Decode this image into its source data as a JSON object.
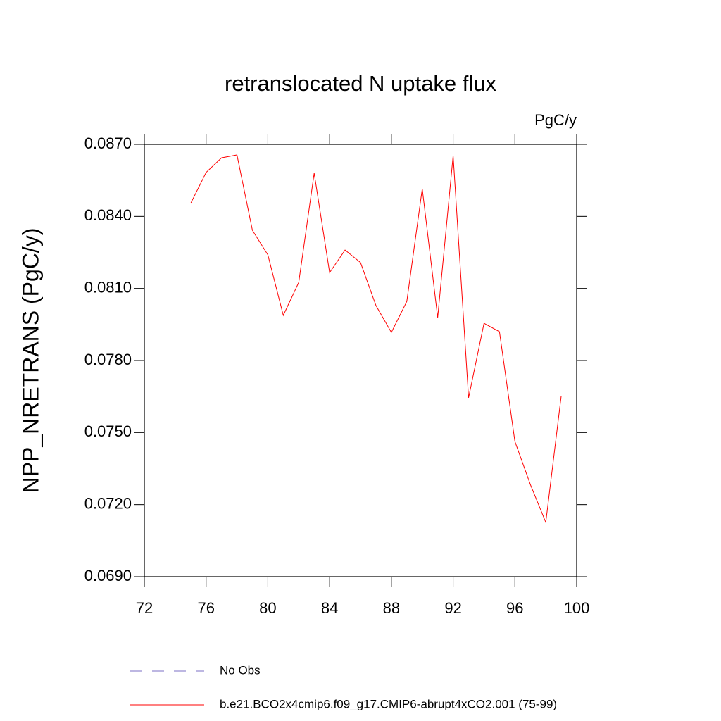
{
  "chart_data": {
    "type": "line",
    "title": "retranslocated N uptake flux",
    "units_label": "PgC/y",
    "y_label": "NPP_NRETRANS  (PgC/y)",
    "x": [
      75,
      76,
      77,
      78,
      79,
      80,
      81,
      82,
      83,
      84,
      85,
      86,
      87,
      88,
      89,
      90,
      91,
      92,
      93,
      94,
      95,
      96,
      97,
      98,
      99
    ],
    "series": [
      {
        "name": "b.e21.BCO2x4cmip6.f09_g17.CMIP6-abrupt4xCO2.001 (75-99)",
        "color": "#ff0000",
        "values": [
          0.08454,
          0.08583,
          0.08644,
          0.08656,
          0.08342,
          0.0824,
          0.07988,
          0.08125,
          0.0858,
          0.08166,
          0.0826,
          0.08208,
          0.08029,
          0.07917,
          0.08046,
          0.08515,
          0.07979,
          0.08653,
          0.07645,
          0.07955,
          0.0792,
          0.07463,
          0.07284,
          0.07126,
          0.07653
        ]
      }
    ],
    "legend_extra": [
      {
        "name": "No Obs",
        "color": "#7b6fc4",
        "dashed": true
      }
    ],
    "xlim": [
      72,
      100
    ],
    "xticks": [
      72,
      76,
      80,
      84,
      88,
      92,
      96,
      100
    ],
    "ylim": [
      0.069,
      0.087
    ],
    "yticks": [
      {
        "value": 0.069,
        "label": "0.0690"
      },
      {
        "value": 0.072,
        "label": "0.0720"
      },
      {
        "value": 0.075,
        "label": "0.0750"
      },
      {
        "value": 0.078,
        "label": "0.0780"
      },
      {
        "value": 0.081,
        "label": "0.0810"
      },
      {
        "value": 0.084,
        "label": "0.0840"
      },
      {
        "value": 0.087,
        "label": "0.0870"
      }
    ],
    "grid": false
  }
}
